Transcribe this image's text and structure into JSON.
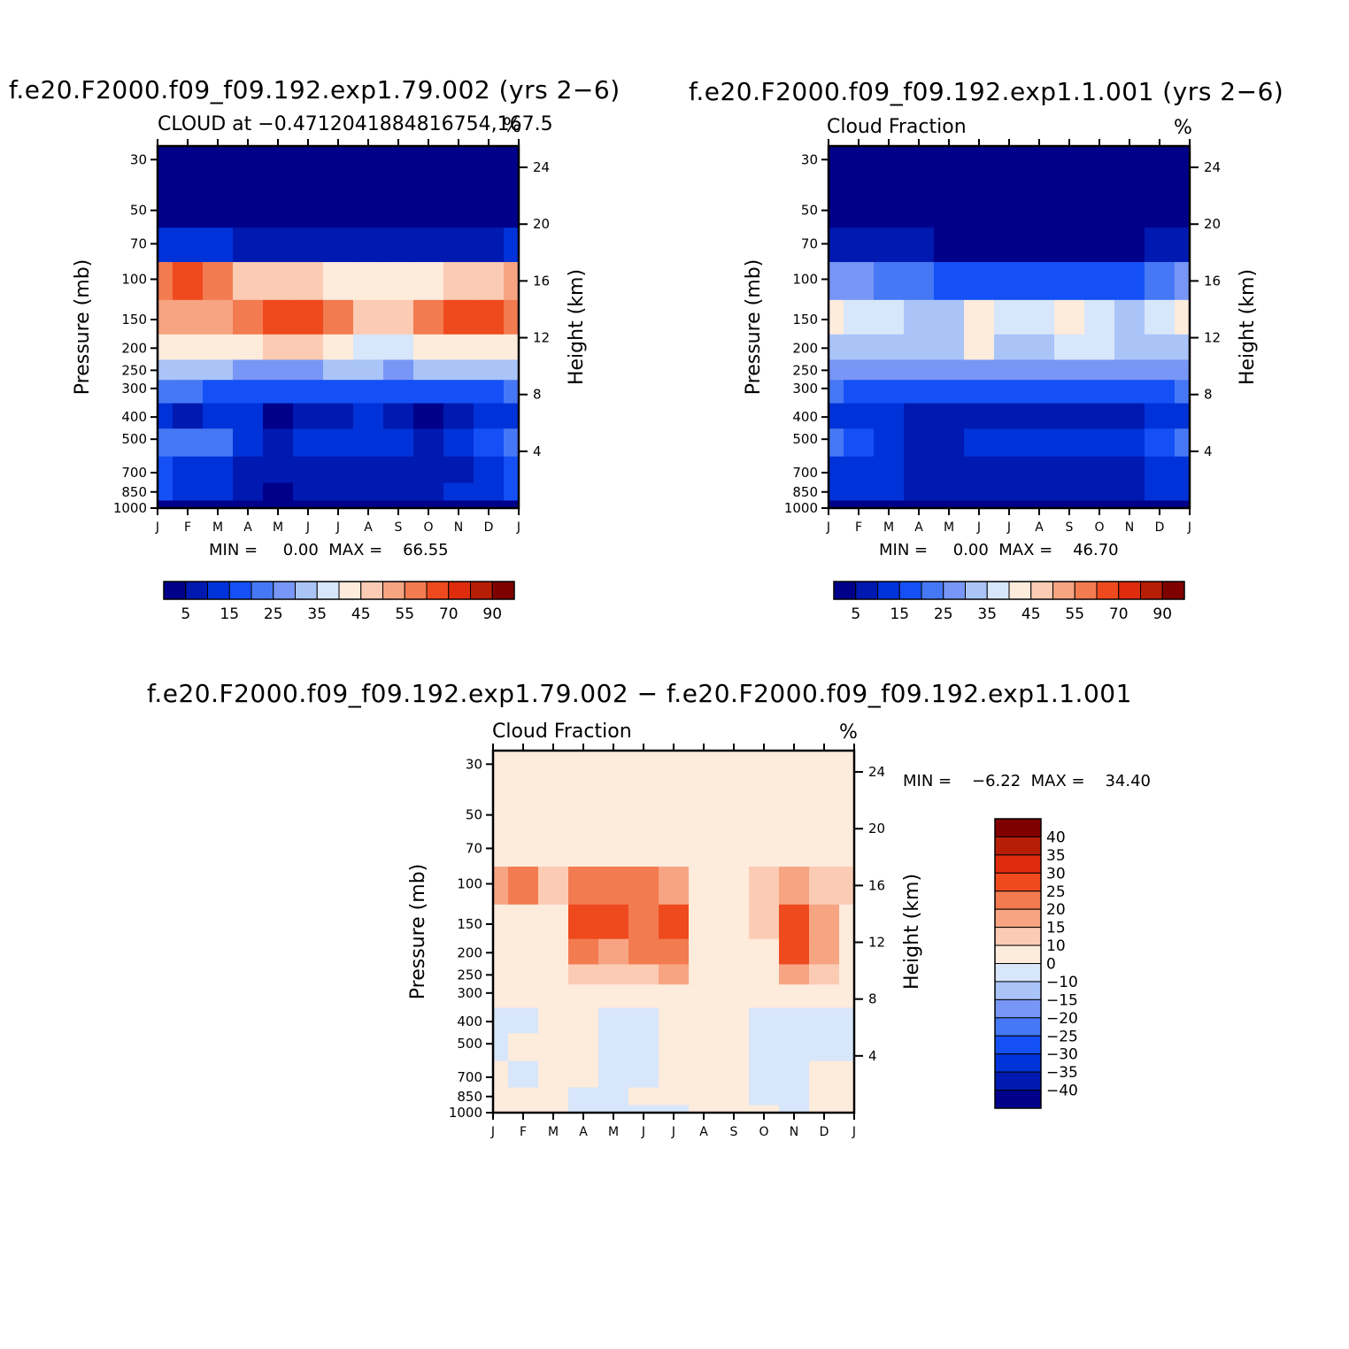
{
  "panels": [
    {
      "id": "p1",
      "title": "f.e20.F2000.f09_f09.192.exp1.79.002 (yrs 2−6)",
      "left_label": "CLOUD at −0.4712041884816754,167.5",
      "units": "%",
      "min_max": "MIN =     0.00  MAX =    66.55"
    },
    {
      "id": "p2",
      "title": "f.e20.F2000.f09_f09.192.exp1.1.001 (yrs 2−6)",
      "left_label": "Cloud Fraction",
      "units": "%",
      "min_max": "MIN =     0.00  MAX =    46.70"
    },
    {
      "id": "p3",
      "title": "f.e20.F2000.f09_f09.192.exp1.79.002 − f.e20.F2000.f09_f09.192.exp1.1.001",
      "left_label": "Cloud Fraction",
      "units": "%",
      "min_max": "MIN =    −6.22  MAX =    34.40"
    }
  ],
  "axes": {
    "ylabel_left": "Pressure (mb)",
    "ylabel_right": "Height (km)",
    "month_ticks": [
      "J",
      "F",
      "M",
      "A",
      "M",
      "J",
      "J",
      "A",
      "S",
      "O",
      "N",
      "D",
      "J"
    ],
    "pressure_ticks": [
      "30",
      "50",
      "70",
      "100",
      "150",
      "200",
      "250",
      "300",
      "400",
      "500",
      "700",
      "850",
      "1000"
    ],
    "height_ticks": [
      "24",
      "20",
      "16",
      "12",
      "8",
      "4"
    ]
  },
  "colorbars": {
    "abs_colors": [
      "#00008a",
      "#0019b0",
      "#0032d9",
      "#1450f5",
      "#4678f5",
      "#7896f5",
      "#aac4f8",
      "#d7e6fa",
      "#fdebdc",
      "#fbcbb4",
      "#f7a482",
      "#f37b50",
      "#ee4a1e",
      "#de2c0c",
      "#b61e06",
      "#800000"
    ],
    "abs_labels": [
      "5",
      "15",
      "25",
      "35",
      "45",
      "55",
      "70",
      "90"
    ],
    "diff_colors": [
      "#800000",
      "#b61e06",
      "#de2c0c",
      "#ee4a1e",
      "#f37b50",
      "#f7a482",
      "#fbcbb4",
      "#fdebdc",
      "#d7e6fa",
      "#aac4f8",
      "#7896f5",
      "#4678f5",
      "#1450f5",
      "#0032d9",
      "#0019b0",
      "#00008a"
    ],
    "diff_labels": [
      "40",
      "35",
      "30",
      "25",
      "20",
      "15",
      "10",
      "0",
      "−10",
      "−15",
      "−20",
      "−25",
      "−30",
      "−35",
      "−40"
    ]
  },
  "chart_data": [
    {
      "type": "heatmap",
      "title": "f.e20.F2000.f09_f09.192.exp1.79.002 (yrs 2−6)",
      "subtitle": "CLOUD at −0.4712041884816754,167.5",
      "xlabel": "",
      "ylabel": "Pressure (mb)",
      "y2label": "Height (km)",
      "units": "%",
      "x": [
        "J",
        "F",
        "M",
        "A",
        "M",
        "J",
        "J",
        "A",
        "S",
        "O",
        "N",
        "D",
        "J"
      ],
      "y_pressure_mb": [
        1000,
        850,
        700,
        500,
        400,
        300,
        250,
        200,
        150,
        100,
        70,
        50,
        30
      ],
      "values": [
        [
          0,
          0,
          0,
          0,
          0,
          0,
          0,
          0,
          0,
          0,
          0,
          0,
          0
        ],
        [
          18,
          14,
          13,
          6,
          4,
          7,
          9,
          9,
          9,
          9,
          10,
          13,
          18
        ],
        [
          16,
          13,
          12,
          6,
          5,
          7,
          8,
          9,
          9,
          5,
          8,
          12,
          16
        ],
        [
          20,
          24,
          20,
          12,
          8,
          10,
          11,
          11,
          11,
          8,
          10,
          18,
          22
        ],
        [
          12,
          8,
          10,
          10,
          4,
          5,
          9,
          10,
          9,
          4,
          7,
          10,
          12
        ],
        [
          22,
          22,
          19,
          15,
          15,
          16,
          17,
          18,
          16,
          18,
          17,
          19,
          22
        ],
        [
          30,
          31,
          31,
          27,
          27,
          28,
          30,
          30,
          29,
          30,
          30,
          30,
          31
        ],
        [
          40,
          41,
          43,
          44,
          45,
          45,
          42,
          38,
          39,
          42,
          44,
          42,
          41
        ],
        [
          53,
          54,
          52,
          57,
          63,
          64,
          58,
          45,
          46,
          55,
          62,
          61,
          59
        ],
        [
          55,
          62,
          56,
          49,
          46,
          45,
          44,
          43,
          42,
          42,
          46,
          48,
          50
        ],
        [
          12,
          11,
          10,
          9,
          8,
          7,
          7,
          6,
          6,
          6,
          7,
          9,
          12
        ],
        [
          2,
          2,
          2,
          2,
          2,
          2,
          2,
          2,
          2,
          2,
          2,
          2,
          2
        ],
        [
          2,
          2,
          2,
          2,
          2,
          2,
          2,
          2,
          2,
          2,
          2,
          2,
          2
        ]
      ],
      "ylim": [
        1000,
        30
      ],
      "stats": {
        "min": 0.0,
        "max": 66.55
      }
    },
    {
      "type": "heatmap",
      "title": "f.e20.F2000.f09_f09.192.exp1.1.001 (yrs 2−6)",
      "subtitle": "Cloud Fraction",
      "xlabel": "",
      "ylabel": "Pressure (mb)",
      "y2label": "Height (km)",
      "units": "%",
      "x": [
        "J",
        "F",
        "M",
        "A",
        "M",
        "J",
        "J",
        "A",
        "S",
        "O",
        "N",
        "D",
        "J"
      ],
      "y_pressure_mb": [
        1000,
        850,
        700,
        500,
        400,
        300,
        250,
        200,
        150,
        100,
        70,
        50,
        30
      ],
      "values": [
        [
          0,
          0,
          0,
          0,
          0,
          0,
          0,
          0,
          0,
          0,
          0,
          0,
          0
        ],
        [
          12,
          11,
          11,
          5,
          9,
          9,
          9,
          9,
          9,
          9,
          9,
          10,
          12
        ],
        [
          12,
          11,
          11,
          5,
          9,
          9,
          9,
          9,
          9,
          7,
          9,
          11,
          13
        ],
        [
          20,
          16,
          13,
          7,
          9,
          10,
          10,
          10,
          10,
          10,
          11,
          15,
          20
        ],
        [
          14,
          11,
          11,
          8,
          9,
          9,
          9,
          7,
          7,
          7,
          9,
          11,
          14
        ],
        [
          20,
          19,
          18,
          16,
          16,
          17,
          18,
          18,
          18,
          19,
          18,
          18,
          20
        ],
        [
          26,
          27,
          26,
          25,
          25,
          26,
          27,
          27,
          27,
          27,
          27,
          27,
          26
        ],
        [
          34,
          34,
          32,
          30,
          33,
          40,
          34,
          33,
          37,
          35,
          32,
          33,
          34
        ],
        [
          40,
          38,
          36,
          32,
          33,
          44,
          36,
          36,
          41,
          36,
          31,
          35,
          41
        ],
        [
          28,
          25,
          22,
          20,
          19,
          18,
          17,
          16,
          16,
          16,
          18,
          22,
          27
        ],
        [
          8,
          7,
          6,
          5,
          4,
          3,
          2,
          2,
          2,
          2,
          3,
          5,
          8
        ],
        [
          2,
          2,
          2,
          2,
          2,
          2,
          2,
          2,
          2,
          2,
          2,
          2,
          2
        ],
        [
          2,
          2,
          2,
          2,
          2,
          2,
          2,
          2,
          2,
          2,
          2,
          2,
          2
        ]
      ],
      "ylim": [
        1000,
        30
      ],
      "stats": {
        "min": 0.0,
        "max": 46.7
      }
    },
    {
      "type": "heatmap",
      "title": "f.e20.F2000.f09_f09.192.exp1.79.002 − f.e20.F2000.f09_f09.192.exp1.1.001",
      "subtitle": "Cloud Fraction",
      "xlabel": "",
      "ylabel": "Pressure (mb)",
      "y2label": "Height (km)",
      "units": "%",
      "x": [
        "J",
        "F",
        "M",
        "A",
        "M",
        "J",
        "J",
        "A",
        "S",
        "O",
        "N",
        "D",
        "J"
      ],
      "y_pressure_mb": [
        1000,
        850,
        700,
        500,
        400,
        300,
        250,
        200,
        150,
        100,
        70,
        50,
        30
      ],
      "values": [
        [
          0,
          0,
          0,
          -3,
          -3,
          -3,
          -3,
          2,
          2,
          2,
          -3,
          2,
          2
        ],
        [
          2,
          2,
          2,
          -3,
          -3,
          2,
          2,
          2,
          2,
          -3,
          -3,
          2,
          2
        ],
        [
          2,
          -3,
          2,
          2,
          -3,
          -3,
          2,
          2,
          2,
          -3,
          -3,
          2,
          2
        ],
        [
          -3,
          2,
          2,
          2,
          -3,
          -3,
          2,
          2,
          2,
          -3,
          -3,
          -3,
          -3
        ],
        [
          -3,
          -3,
          2,
          2,
          -3,
          -3,
          2,
          2,
          2,
          -3,
          -3,
          -3,
          -3
        ],
        [
          2,
          2,
          2,
          8,
          2,
          2,
          8,
          2,
          2,
          2,
          8,
          2,
          2
        ],
        [
          2,
          2,
          2,
          12,
          11,
          14,
          15,
          2,
          2,
          3,
          16,
          12,
          2
        ],
        [
          2,
          3,
          4,
          22,
          18,
          22,
          24,
          3,
          2,
          4,
          28,
          18,
          4
        ],
        [
          8,
          8,
          9,
          27,
          27,
          23,
          29,
          6,
          5,
          13,
          26,
          17,
          8
        ],
        [
          15,
          20,
          10,
          20,
          20,
          20,
          16,
          8,
          3,
          14,
          17,
          14,
          12
        ],
        [
          8,
          8,
          4,
          6,
          6,
          6,
          6,
          4,
          2,
          6,
          6,
          6,
          6
        ],
        [
          2,
          2,
          2,
          2,
          2,
          2,
          2,
          2,
          2,
          2,
          2,
          2,
          2
        ],
        [
          2,
          2,
          2,
          2,
          2,
          2,
          2,
          2,
          2,
          2,
          2,
          2,
          2
        ]
      ],
      "ylim": [
        1000,
        30
      ],
      "stats": {
        "min": -6.22,
        "max": 34.4
      }
    }
  ]
}
